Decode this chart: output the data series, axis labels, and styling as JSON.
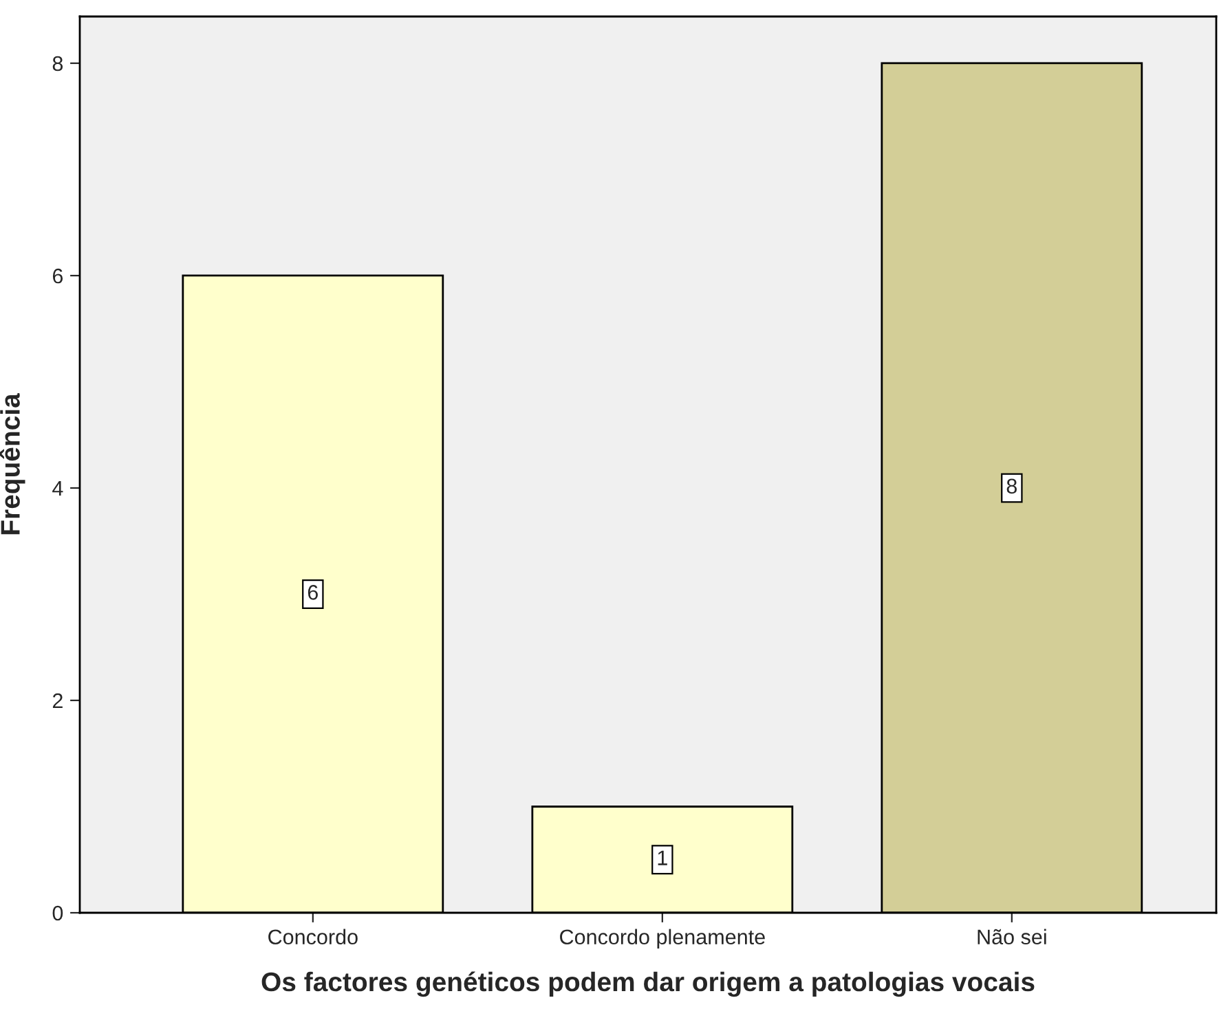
{
  "chart_data": {
    "type": "bar",
    "xlabel": "Os factores genéticos podem dar origem a patologias vocais",
    "ylabel": "Frequência",
    "categories": [
      "Concordo",
      "Concordo plenamente",
      "Não sei"
    ],
    "values": [
      6,
      1,
      8
    ],
    "colors": [
      "#ffffcc",
      "#ffffcc",
      "#d3ce97"
    ],
    "ylim": [
      0,
      8.44
    ],
    "yticks": [
      0,
      2,
      4,
      6,
      8
    ],
    "grid": false,
    "data_labels": true
  }
}
